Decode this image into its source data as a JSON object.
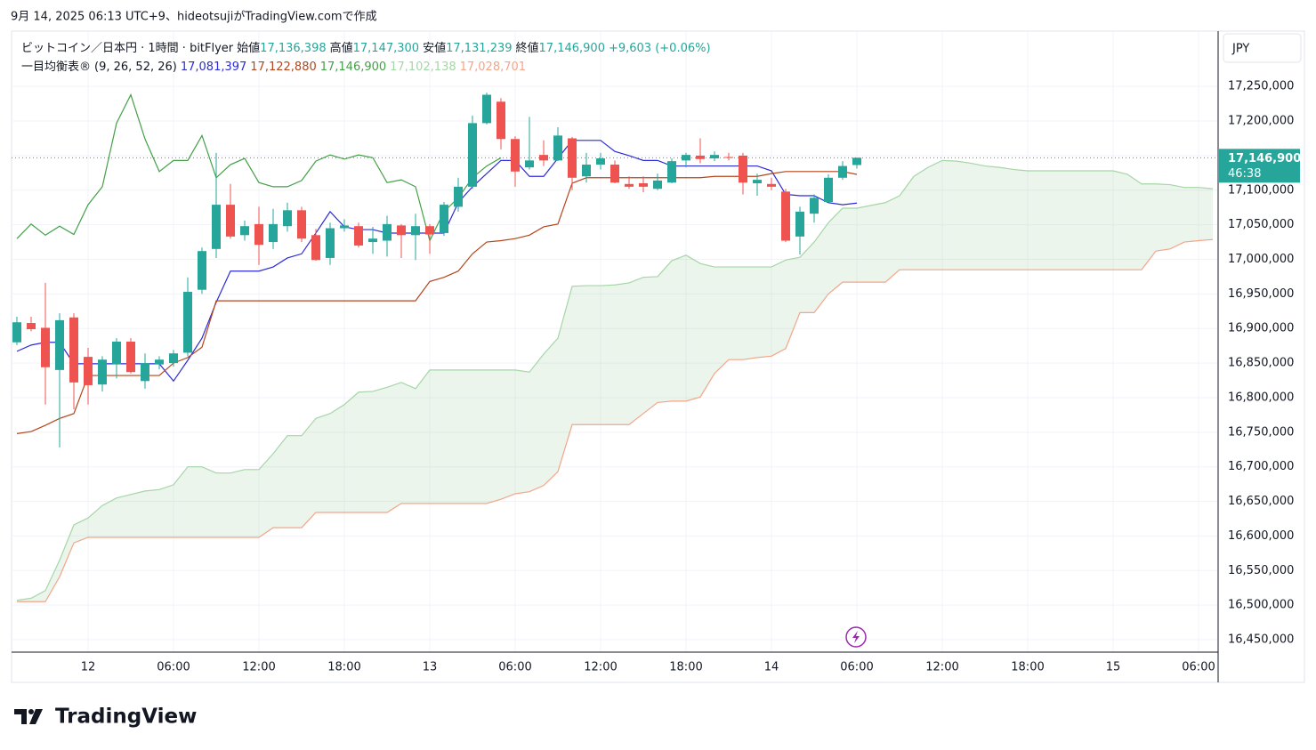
{
  "header": {
    "caption": "9月 14, 2025 06:13 UTC+9、hideotsujiがTradingView.comで作成"
  },
  "footer": {
    "logo": "TradingView"
  },
  "chart_data": {
    "type": "candlestick",
    "symbol": "ビットコイン／日本円 · 1時間 · bitFlyer",
    "ohlc_legend": [
      {
        "label": "始値",
        "value": "17,136,398"
      },
      {
        "label": "高値",
        "value": "17,147,300"
      },
      {
        "label": "安値",
        "value": "17,131,239"
      },
      {
        "label": "終値",
        "value": "17,146,900"
      }
    ],
    "change": "+9,603 (+0.06%)",
    "legend_color": "#26a69a",
    "indicator": {
      "name": "一目均衡表®",
      "params": "(9, 26, 52, 26)"
    },
    "currency": "JPY",
    "last_price_label": "17,146,900",
    "countdown": "46:38",
    "up_color": "#26a69a",
    "down_color": "#ef5350",
    "cloud_color": "#43a047",
    "grid": true,
    "ylim": [
      16432000,
      17330000
    ],
    "yticks": [
      {
        "value": 16450000,
        "label": "16,450,000"
      },
      {
        "value": 16500000,
        "label": "16,500,000"
      },
      {
        "value": 16550000,
        "label": "16,550,000"
      },
      {
        "value": 16600000,
        "label": "16,600,000"
      },
      {
        "value": 16650000,
        "label": "16,650,000"
      },
      {
        "value": 16700000,
        "label": "16,700,000"
      },
      {
        "value": 16750000,
        "label": "16,750,000"
      },
      {
        "value": 16800000,
        "label": "16,800,000"
      },
      {
        "value": 16850000,
        "label": "16,850,000"
      },
      {
        "value": 16900000,
        "label": "16,900,000"
      },
      {
        "value": 16950000,
        "label": "16,950,000"
      },
      {
        "value": 17000000,
        "label": "17,000,000"
      },
      {
        "value": 17050000,
        "label": "17,050,000"
      },
      {
        "value": 17100000,
        "label": "17,100,000"
      },
      {
        "value": 17150000,
        "label": "17,150,000"
      },
      {
        "value": 17200000,
        "label": "17,200,000"
      },
      {
        "value": 17250000,
        "label": "17,250,000"
      }
    ],
    "categories": [
      null,
      null,
      null,
      null,
      null,
      "12",
      null,
      null,
      null,
      null,
      null,
      "06:00",
      null,
      null,
      null,
      null,
      null,
      "12:00",
      null,
      null,
      null,
      null,
      null,
      "18:00",
      null,
      null,
      null,
      null,
      null,
      "13",
      null,
      null,
      null,
      null,
      null,
      "06:00",
      null,
      null,
      null,
      null,
      null,
      "12:00",
      null,
      null,
      null,
      null,
      null,
      "18:00",
      null,
      null,
      null,
      null,
      null,
      "14",
      null,
      null,
      null,
      null,
      null,
      "06:00",
      null,
      null,
      null,
      null,
      null,
      "12:00",
      null,
      null,
      null,
      null,
      null,
      "18:00",
      null,
      null,
      null,
      null,
      null,
      "15",
      null,
      null,
      null,
      null,
      null,
      "06:00",
      null
    ],
    "open": [
      16880000,
      16908000,
      16901000,
      16840000,
      16916000,
      16859000,
      16819000,
      16848000,
      16881000,
      16824000,
      16848000,
      16850000,
      16865000,
      16956000,
      17015000,
      17079000,
      17035000,
      17051000,
      17025000,
      17048000,
      17071000,
      17035000,
      17002000,
      17045000,
      17048000,
      17025000,
      17027000,
      17049000,
      17035000,
      17048000,
      17038000,
      17076000,
      17105000,
      17197000,
      17228000,
      17174000,
      17133000,
      17151000,
      17143000,
      17175000,
      17120000,
      17137000,
      17137000,
      17109000,
      17110000,
      17102000,
      17111000,
      17143000,
      17150000,
      17146000,
      17148000,
      17150000,
      17110000,
      17109000,
      17098000,
      17033000,
      17066000,
      17083000,
      17118000,
      17136398,
      null,
      null,
      null,
      null,
      null,
      null,
      null,
      null,
      null,
      null,
      null,
      null,
      null,
      null,
      null,
      null,
      null,
      null,
      null,
      null,
      null,
      null,
      null,
      null,
      null
    ],
    "high": [
      16917000,
      16917000,
      16966000,
      16922000,
      16922000,
      16872000,
      16860000,
      16886000,
      16886000,
      16864000,
      16860000,
      16869000,
      16974000,
      17017000,
      17154000,
      17109000,
      17056000,
      17076000,
      17073000,
      17082000,
      17076000,
      17044000,
      17053000,
      17058000,
      17053000,
      17047000,
      17063000,
      17051000,
      17066000,
      17051000,
      17083000,
      17118000,
      17208000,
      17241000,
      17233000,
      17178000,
      17206000,
      17172000,
      17191000,
      17177000,
      17154000,
      17154000,
      17143000,
      17120000,
      17120000,
      17124000,
      17146000,
      17154000,
      17175000,
      17156000,
      17154000,
      17154000,
      17124000,
      17118000,
      17102000,
      17076000,
      17094000,
      17123000,
      17142000,
      17147300,
      null,
      null,
      null,
      null,
      null,
      null,
      null,
      null,
      null,
      null,
      null,
      null,
      null,
      null,
      null,
      null,
      null,
      null,
      null,
      null,
      null,
      null,
      null,
      null,
      null
    ],
    "low": [
      16876000,
      16896000,
      16790000,
      16728000,
      16783000,
      16790000,
      16809000,
      16828000,
      16835000,
      16813000,
      16841000,
      16845000,
      16860000,
      16950000,
      17002000,
      17030000,
      17027000,
      16992000,
      17015000,
      17040000,
      17025000,
      16998000,
      16992000,
      17040000,
      17017000,
      17008000,
      17004000,
      17002000,
      16999000,
      17008000,
      17034000,
      17069000,
      17102000,
      17195000,
      17159000,
      17105000,
      17130000,
      17135000,
      17142000,
      17100000,
      17111000,
      17130000,
      17110000,
      17102000,
      17097000,
      17100000,
      17110000,
      17133000,
      17139000,
      17142000,
      17143000,
      17094000,
      17092000,
      17100000,
      17025000,
      17007000,
      17053000,
      17082000,
      17115000,
      17131239,
      null,
      null,
      null,
      null,
      null,
      null,
      null,
      null,
      null,
      null,
      null,
      null,
      null,
      null,
      null,
      null,
      null,
      null,
      null,
      null,
      null,
      null,
      null,
      null,
      null
    ],
    "close": [
      16909000,
      16899000,
      16844000,
      16912000,
      16822000,
      16818000,
      16855000,
      16881000,
      16837000,
      16850000,
      16855000,
      16864000,
      16953000,
      17012000,
      17079000,
      17033000,
      17048000,
      17021000,
      17051000,
      17071000,
      17030000,
      16999000,
      17045000,
      17049000,
      17020000,
      17030000,
      17051000,
      17035000,
      17048000,
      17036000,
      17079000,
      17105000,
      17197000,
      17238000,
      17174000,
      17127000,
      17143000,
      17143000,
      17179000,
      17118000,
      17137000,
      17146000,
      17111000,
      17105000,
      17105000,
      17114000,
      17142000,
      17151000,
      17145000,
      17151000,
      17147000,
      17111000,
      17115000,
      17105000,
      17027000,
      17069000,
      17089000,
      17118000,
      17135000,
      17146900,
      null,
      null,
      null,
      null,
      null,
      null,
      null,
      null,
      null,
      null,
      null,
      null,
      null,
      null,
      null,
      null,
      null,
      null,
      null,
      null,
      null,
      null,
      null,
      null,
      null
    ],
    "lines": [
      {
        "color": "#2b2bd9",
        "value_label": "17,081,397",
        "values": [
          16867000,
          16876000,
          16880000,
          16880000,
          16849000,
          16849000,
          16849000,
          16849000,
          16849000,
          16849000,
          16849000,
          16824000,
          16854000,
          16886000,
          16938000,
          16983000,
          16983000,
          16983000,
          16989000,
          17002000,
          17008000,
          17038000,
          17069000,
          17047000,
          17043000,
          17043000,
          17038000,
          17038000,
          17038000,
          17038000,
          17038000,
          17082000,
          17105000,
          17124000,
          17143000,
          17143000,
          17120000,
          17120000,
          17146000,
          17172000,
          17172000,
          17172000,
          17156000,
          17150000,
          17143000,
          17143000,
          17135000,
          17135000,
          17135000,
          17135000,
          17135000,
          17135000,
          17135000,
          17128000,
          17094000,
          17092000,
          17092000,
          17082000,
          17079000,
          17081397,
          null,
          null,
          null,
          null,
          null,
          null,
          null,
          null,
          null,
          null,
          null,
          null,
          null,
          null,
          null,
          null,
          null,
          null,
          null,
          null,
          null,
          null,
          null,
          null,
          null
        ]
      },
      {
        "color": "#b5451b",
        "value_label": "17,122,880",
        "values": [
          16748000,
          16751000,
          16760000,
          16770000,
          16777000,
          16832000,
          16832000,
          16832000,
          16832000,
          16832000,
          16832000,
          16850000,
          16858000,
          16873000,
          16940000,
          16940000,
          16940000,
          16940000,
          16940000,
          16940000,
          16940000,
          16940000,
          16940000,
          16940000,
          16940000,
          16940000,
          16940000,
          16940000,
          16940000,
          16968000,
          16974000,
          16983000,
          17008000,
          17025000,
          17027000,
          17030000,
          17035000,
          17047000,
          17051000,
          17110000,
          17118000,
          17118000,
          17118000,
          17118000,
          17118000,
          17118000,
          17118000,
          17118000,
          17118000,
          17120000,
          17120000,
          17120000,
          17120000,
          17124000,
          17127000,
          17127000,
          17127000,
          17127000,
          17127000,
          17122880,
          null,
          null,
          null,
          null,
          null,
          null,
          null,
          null,
          null,
          null,
          null,
          null,
          null,
          null,
          null,
          null,
          null,
          null,
          null,
          null,
          null,
          null,
          null,
          null,
          null
        ]
      },
      {
        "color": "#43a047",
        "value_label": "17,146,900",
        "values": [
          17030000,
          17051000,
          17035000,
          17048000,
          17036000,
          17079000,
          17105000,
          17197000,
          17238000,
          17174000,
          17127000,
          17143000,
          17143000,
          17179000,
          17118000,
          17137000,
          17146000,
          17111000,
          17105000,
          17105000,
          17114000,
          17142000,
          17151000,
          17145000,
          17151000,
          17147000,
          17111000,
          17115000,
          17105000,
          17027000,
          17069000,
          17089000,
          17118000,
          17135000,
          17146900,
          null,
          null,
          null,
          null,
          null,
          null,
          null,
          null,
          null,
          null,
          null,
          null,
          null,
          null,
          null,
          null,
          null,
          null,
          null,
          null,
          null,
          null,
          null,
          null,
          null,
          null,
          null,
          null,
          null,
          null,
          null,
          null,
          null,
          null,
          null,
          null,
          null,
          null,
          null,
          null,
          null,
          null,
          null,
          null,
          null,
          null,
          null,
          null,
          null,
          null
        ]
      },
      {
        "color": "#a5d6a7",
        "value_label": "17,102,138",
        "values": [
          16507000,
          16510000,
          16521000,
          16565000,
          16616000,
          16626000,
          16644000,
          16655000,
          16660000,
          16665000,
          16667000,
          16674000,
          16700000,
          16700000,
          16691000,
          16691000,
          16696000,
          16696000,
          16719000,
          16745000,
          16745000,
          16770000,
          16777000,
          16790000,
          16808000,
          16809000,
          16815000,
          16822000,
          16813000,
          16840000,
          16840000,
          16840000,
          16840000,
          16840000,
          16840000,
          16840000,
          16837000,
          16863000,
          16886000,
          16961000,
          16962000,
          16962000,
          16963000,
          16966000,
          16974000,
          16975000,
          16998000,
          17006000,
          16994000,
          16989000,
          16989000,
          16989000,
          16989000,
          16989000,
          16999000,
          17003000,
          17025000,
          17053000,
          17074000,
          17074000,
          17078000,
          17082000,
          17092000,
          17120000,
          17133000,
          17143000,
          17142000,
          17139000,
          17135000,
          17133000,
          17130000,
          17128000,
          17128000,
          17128000,
          17128000,
          17128000,
          17128000,
          17128000,
          17123000,
          17109000,
          17109000,
          17108000,
          17104000,
          17104000,
          17102138
        ]
      },
      {
        "color": "#f4a58a",
        "value_label": "17,028,701",
        "values": [
          16505000,
          16505000,
          16505000,
          16541000,
          16590000,
          16598000,
          16598000,
          16598000,
          16598000,
          16598000,
          16598000,
          16598000,
          16598000,
          16598000,
          16598000,
          16598000,
          16598000,
          16598000,
          16612000,
          16612000,
          16612000,
          16634000,
          16634000,
          16634000,
          16634000,
          16634000,
          16634000,
          16647000,
          16647000,
          16647000,
          16647000,
          16647000,
          16647000,
          16647000,
          16653000,
          16661000,
          16664000,
          16673000,
          16693000,
          16761000,
          16761000,
          16761000,
          16761000,
          16761000,
          16777000,
          16793000,
          16795000,
          16795000,
          16801000,
          16835000,
          16855000,
          16855000,
          16858000,
          16860000,
          16871000,
          16923000,
          16923000,
          16950000,
          16967000,
          16967000,
          16967000,
          16967000,
          16985000,
          16985000,
          16985000,
          16985000,
          16985000,
          16985000,
          16985000,
          16985000,
          16985000,
          16985000,
          16985000,
          16985000,
          16985000,
          16985000,
          16985000,
          16985000,
          16985000,
          16985000,
          17012000,
          17015000,
          17025000,
          17027000,
          17028701
        ]
      }
    ]
  }
}
